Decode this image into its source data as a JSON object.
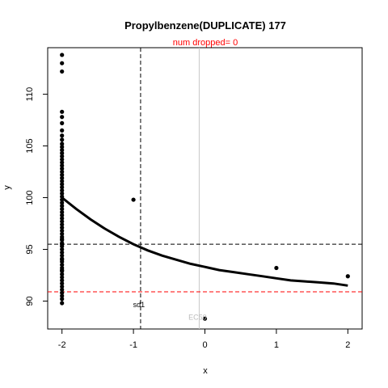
{
  "chart_data": {
    "type": "scatter",
    "title": "Propylbenzene(DUPLICATE) 177",
    "subtitle": "num dropped= 0",
    "xlabel": "x",
    "ylabel": "y",
    "xlim": [
      -2.2,
      2.2
    ],
    "ylim": [
      87.3,
      114.5
    ],
    "x_ticks": [
      -2,
      -1,
      0,
      1,
      2
    ],
    "y_ticks": [
      90,
      95,
      100,
      105,
      110
    ],
    "grid": false,
    "points": {
      "x": [
        -2,
        -2,
        -2,
        -2,
        -2,
        -2,
        -2,
        -2,
        -2,
        -2,
        -2,
        -2,
        -2,
        -2,
        -2,
        -2,
        -2,
        -2,
        -2,
        -2,
        -2,
        -2,
        -2,
        -2,
        -2,
        -2,
        -2,
        -2,
        -2,
        -2,
        -2,
        -2,
        -2,
        -2,
        -2,
        -2,
        -2,
        -2,
        -2,
        -2,
        -2,
        -2,
        -2,
        -2,
        -2,
        -2,
        -2,
        -2,
        -2,
        -2,
        -2,
        -2,
        -2,
        -2,
        -2,
        -2,
        -2,
        -2,
        -2,
        -2,
        -2,
        -2,
        -2,
        -2,
        -2,
        -1,
        0,
        1,
        2
      ],
      "y": [
        113.8,
        113.0,
        112.2,
        108.3,
        107.8,
        107.2,
        106.5,
        106.0,
        105.6,
        105.2,
        104.9,
        104.6,
        104.3,
        104.0,
        103.7,
        103.4,
        103.1,
        102.8,
        102.5,
        102.2,
        101.9,
        101.6,
        101.3,
        101.0,
        100.7,
        100.4,
        100.1,
        99.8,
        99.5,
        99.2,
        98.9,
        98.6,
        98.3,
        98.0,
        97.7,
        97.4,
        97.1,
        96.8,
        96.5,
        96.2,
        95.9,
        95.6,
        95.3,
        95.0,
        94.7,
        94.4,
        94.1,
        93.8,
        93.5,
        93.2,
        92.9,
        92.6,
        92.3,
        92.0,
        91.7,
        91.4,
        91.1,
        90.8,
        90.5,
        90.2,
        89.8,
        93.0,
        94.0,
        95.5,
        96.0,
        99.8,
        88.3,
        93.2,
        92.4
      ]
    },
    "fit_curve": {
      "x": [
        -2,
        -1.8,
        -1.6,
        -1.4,
        -1.2,
        -1,
        -0.8,
        -0.6,
        -0.4,
        -0.2,
        0,
        0.2,
        0.4,
        0.6,
        0.8,
        1,
        1.2,
        1.4,
        1.6,
        1.8,
        2
      ],
      "y": [
        100.0,
        98.9,
        97.9,
        97.0,
        96.2,
        95.5,
        94.9,
        94.4,
        94.0,
        93.6,
        93.3,
        93.0,
        92.8,
        92.6,
        92.4,
        92.2,
        92.0,
        91.9,
        91.8,
        91.7,
        91.5
      ]
    },
    "reference_lines": {
      "vertical_dashed_x": -0.9,
      "vertical_gray_x": -0.08,
      "horizontal_black_y": 95.5,
      "horizontal_red_y": 90.9
    },
    "annotations": [
      {
        "text": "sd1",
        "x": -0.9,
        "y": 89.4,
        "color": "#000000"
      },
      {
        "text": "EC50",
        "x": -0.08,
        "y": 88.2,
        "color": "#bbbbbb"
      }
    ],
    "colors": {
      "points": "#000000",
      "fit": "#000000",
      "subtitle": "#ff0000",
      "red_line": "#ff0000",
      "gray_line": "#c8c8c8"
    }
  }
}
